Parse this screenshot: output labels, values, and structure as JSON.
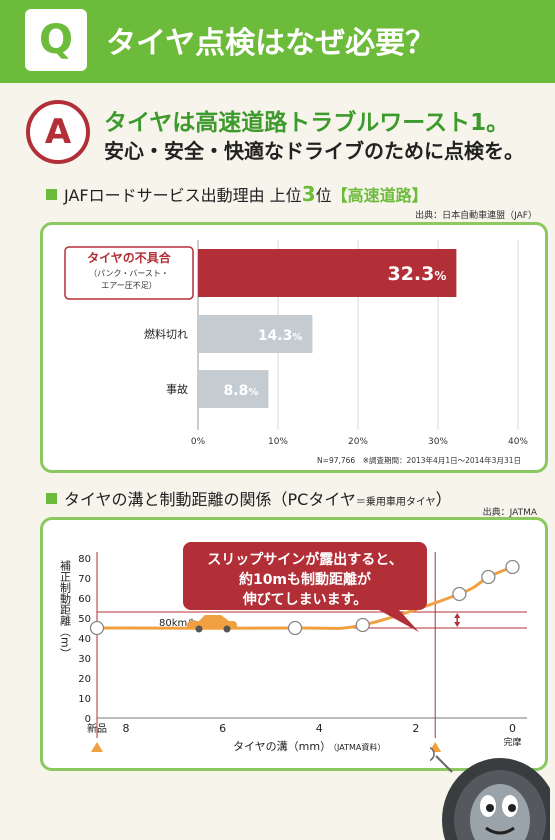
{
  "question": {
    "badge": "Q",
    "text": "タイヤ点検はなぜ必要？"
  },
  "answer": {
    "badge": "A",
    "line1": "タイヤは高速道路トラブルワースト1。",
    "line2": "安心・安全・快適なドライブのために点検を。"
  },
  "section1": {
    "title_pre": "JAFロードサービス出動理由 上位",
    "title_num": "3",
    "title_mid": "位",
    "title_highlight": "【高速道路】",
    "source": "出典：日本自動車連盟（JAF）"
  },
  "section2": {
    "title_pre": "タイヤの溝と制動距離の関係（PCタイヤ",
    "title_small": "＝乗用車用タイヤ",
    "title_post": "）",
    "source": "出典：JATMA"
  },
  "colors": {
    "green": "#6dbb3b",
    "panel_border": "#8cc860",
    "red": "#b32f37",
    "gray_bar": "#c4ccd1",
    "orange": "#f0a040"
  },
  "chart_data": [
    {
      "type": "bar",
      "orientation": "horizontal",
      "categories": [
        "タイヤの不具合",
        "燃料切れ",
        "事故"
      ],
      "category_sublabels": [
        "（パンク・バースト・",
        "エアー圧不足）"
      ],
      "values": [
        32.3,
        14.3,
        8.8
      ],
      "value_labels": [
        "32.3",
        "14.3",
        "8.8"
      ],
      "value_unit": "%",
      "highlight_index": 0,
      "xlim": [
        0,
        40
      ],
      "xticks": [
        "0%",
        "10%",
        "20%",
        "30%",
        "40%"
      ],
      "footnote": "N=97,766　※調査期間：2013年4月1日～2014年3月31日"
    },
    {
      "type": "line",
      "x": [
        8.6,
        4.5,
        3.1,
        1.1,
        0.5,
        0
      ],
      "y": [
        45,
        45,
        46.5,
        62,
        70.5,
        75.5
      ],
      "xlim": [
        8.6,
        -0.3
      ],
      "ylim": [
        0,
        80
      ],
      "xticks": [
        "8",
        "6",
        "4",
        "2",
        "0"
      ],
      "yticks": [
        "0",
        "10",
        "20",
        "30",
        "40",
        "50",
        "60",
        "70",
        "80"
      ],
      "xlabel": "タイヤの溝（mm）",
      "xlabel_note": "（JATMA資料）",
      "ylabel": "補正制動距離（m）",
      "speed_label": "80km/h",
      "new_label": "新品",
      "worn_label": "完摩",
      "slip_sign_x": 1.6,
      "upper_line": 53,
      "lower_line": 45,
      "callout_lines": [
        "スリップサインが露出すると、",
        "約10mも制動距離が",
        "伸びてしまいます。"
      ]
    }
  ]
}
